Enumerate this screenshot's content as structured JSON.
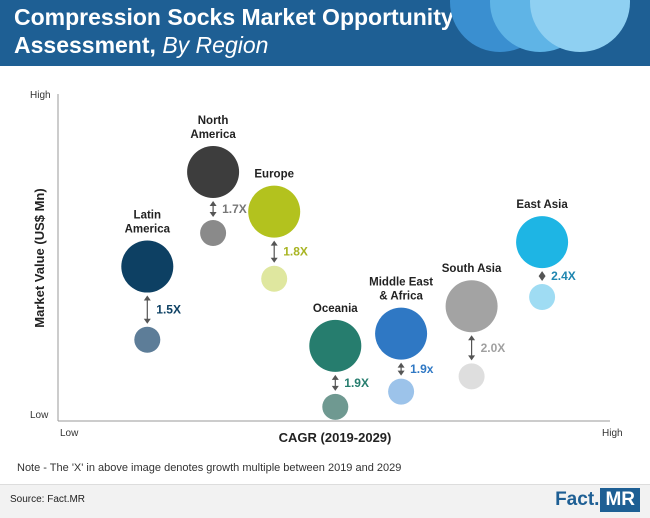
{
  "header": {
    "title_main": "Compression Socks Market Opportunity",
    "title_line2_main": "Assessment,",
    "title_line2_sub": "By Region",
    "colors": {
      "bar": "#1e5f94",
      "deco1": "#3a8fd0",
      "deco2": "#5fb4e6",
      "deco3": "#8fd0f2"
    }
  },
  "chart_data": {
    "type": "bubble-scatter",
    "xlabel": "CAGR (2019-2029)",
    "ylabel": "Market Value (US$ Mn)",
    "x_ticks": [
      "Low",
      "High"
    ],
    "y_ticks": [
      "High",
      "Low"
    ],
    "xlim": [
      0,
      100
    ],
    "ylim": [
      0,
      100
    ],
    "grid": false,
    "regions": [
      {
        "name": "Latin America",
        "label_lines": [
          "Latin",
          "America"
        ],
        "multiple": "1.5X",
        "x": 9,
        "y_2019": 25,
        "y_2029": 49,
        "color_2029": "#0d4063",
        "color_2019": "#5d7d98",
        "r_2029": 26,
        "r_2019": 13,
        "label_color": "#0d4063"
      },
      {
        "name": "North America",
        "label_lines": [
          "North",
          "America"
        ],
        "multiple": "1.7X",
        "x": 23,
        "y_2019": 60,
        "y_2029": 80,
        "color_2029": "#3d3d3d",
        "color_2019": "#8a8a8a",
        "r_2029": 26,
        "r_2019": 13,
        "label_color": "#777777"
      },
      {
        "name": "Europe",
        "label_lines": [
          "Europe"
        ],
        "multiple": "1.8X",
        "x": 36,
        "y_2019": 45,
        "y_2029": 67,
        "color_2029": "#b3c21e",
        "color_2019": "#dfe79f",
        "r_2029": 26,
        "r_2019": 13,
        "label_color": "#a8b422"
      },
      {
        "name": "Oceania",
        "label_lines": [
          "Oceania"
        ],
        "multiple": "1.9X",
        "x": 49,
        "y_2019": 3,
        "y_2029": 23,
        "color_2029": "#267d6e",
        "color_2019": "#6f9991",
        "r_2029": 26,
        "r_2019": 13,
        "label_color": "#267d6e"
      },
      {
        "name": "Middle East & Africa",
        "label_lines": [
          "Middle East",
          "& Africa"
        ],
        "multiple": "1.9x",
        "x": 63,
        "y_2019": 8,
        "y_2029": 27,
        "color_2029": "#2f78c4",
        "color_2019": "#9cc3ea",
        "r_2029": 26,
        "r_2019": 13,
        "label_color": "#2f78c4"
      },
      {
        "name": "South Asia",
        "label_lines": [
          "South Asia"
        ],
        "multiple": "2.0X",
        "x": 78,
        "y_2019": 13,
        "y_2029": 36,
        "color_2029": "#a3a3a3",
        "color_2019": "#dedede",
        "r_2029": 26,
        "r_2019": 13,
        "label_color": "#a0a0a0"
      },
      {
        "name": "East Asia",
        "label_lines": [
          "East Asia"
        ],
        "multiple": "2.4X",
        "x": 93,
        "y_2019": 39,
        "y_2029": 57,
        "color_2029": "#1eb5e4",
        "color_2019": "#9fdcf3",
        "r_2029": 26,
        "r_2019": 13,
        "label_color": "#1e86b0"
      }
    ]
  },
  "note": "Note - The 'X' in above image denotes growth multiple between 2019 and 2029",
  "footer": {
    "source": "Source: Fact.MR",
    "logo_a": "Fact.",
    "logo_b": "MR"
  }
}
